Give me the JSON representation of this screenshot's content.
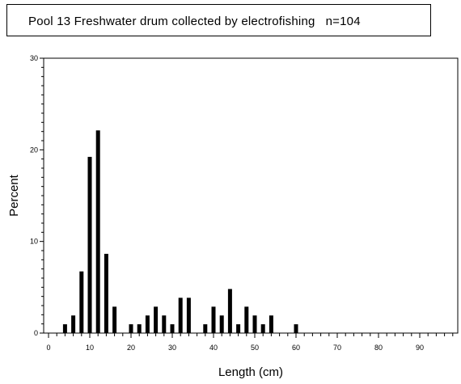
{
  "chart_data": {
    "type": "bar",
    "title": "Pool 13 Freshwater drum collected by electrofishing   n=104",
    "xlabel": "Length (cm)",
    "ylabel": "Percent",
    "xlim": [
      0,
      99
    ],
    "ylim": [
      0,
      30
    ],
    "x_ticks": [
      0,
      10,
      20,
      30,
      40,
      50,
      60,
      70,
      80,
      90
    ],
    "y_ticks": [
      0,
      10,
      20,
      30
    ],
    "x_minor_step": 2,
    "y_minor_step": 1,
    "grid": false,
    "legend": "none",
    "bar_color": "#000000",
    "x": [
      4,
      6,
      8,
      10,
      12,
      14,
      16,
      20,
      22,
      24,
      26,
      28,
      30,
      32,
      34,
      38,
      40,
      42,
      44,
      46,
      48,
      50,
      52,
      54,
      60
    ],
    "values": [
      0.96,
      1.92,
      6.73,
      19.23,
      22.12,
      8.65,
      2.88,
      0.96,
      0.96,
      1.92,
      2.88,
      1.92,
      0.96,
      3.85,
      3.85,
      0.96,
      2.88,
      1.92,
      4.81,
      0.96,
      2.88,
      1.92,
      0.96,
      1.92,
      0.96
    ]
  }
}
